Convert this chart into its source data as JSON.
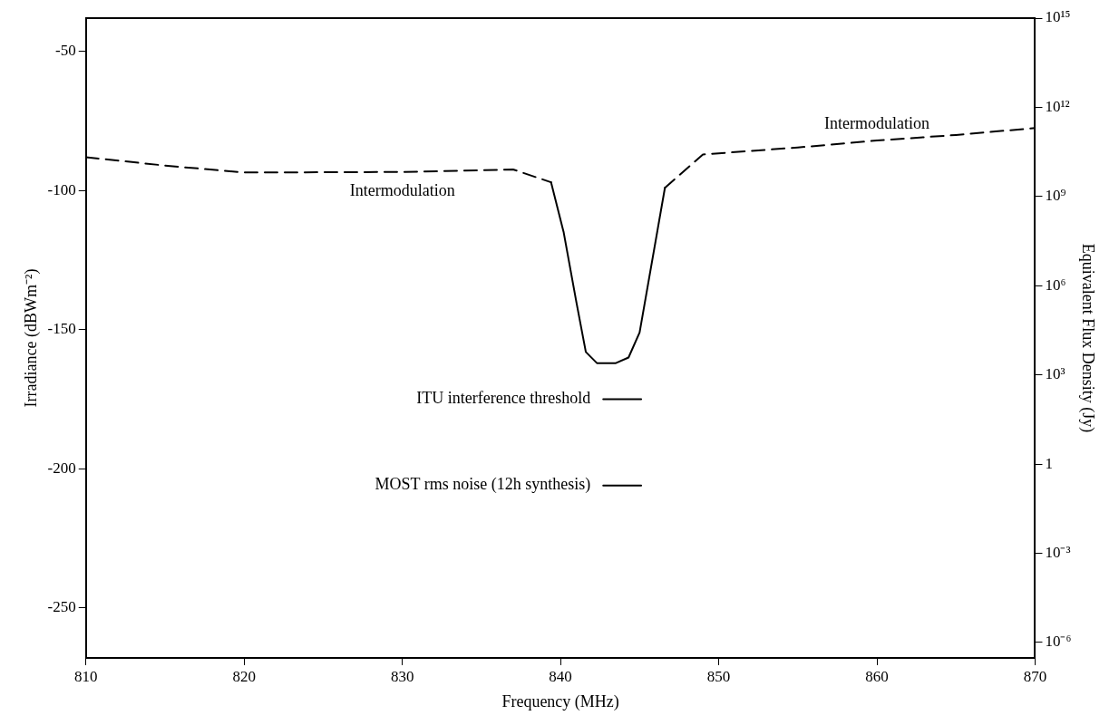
{
  "chart_data": {
    "type": "line",
    "xlabel": "Frequency (MHz)",
    "ylabel": "Irradiance (dBWm⁻²)",
    "y2label": "Equivalent Flux Density (Jy)",
    "xlim": [
      810,
      870
    ],
    "xticks": [
      810,
      820,
      830,
      840,
      850,
      860,
      870
    ],
    "ylim": [
      -268,
      -38
    ],
    "yticks": [
      -250,
      -200,
      -150,
      -100,
      -50
    ],
    "y2lim": [
      3e-07,
      1000000000000000.0
    ],
    "log": "y2",
    "y2ticks": [
      {
        "value": 1e-06,
        "label": "10⁻⁶"
      },
      {
        "value": 0.001,
        "label": "10⁻³"
      },
      {
        "value": 1,
        "label": "1"
      },
      {
        "value": 1000.0,
        "label": "10³"
      },
      {
        "value": 1000000.0,
        "label": "10⁶"
      },
      {
        "value": 1000000000.0,
        "label": "10⁹"
      },
      {
        "value": 1000000000000.0,
        "label": "10¹²"
      },
      {
        "value": 1000000000000000.0,
        "label": "10¹⁵"
      }
    ],
    "grid": false,
    "legend": false,
    "marker": "none",
    "series": [
      {
        "name": "Intermodulation",
        "color": "#000000",
        "line_style": "dashed",
        "x": [
          810,
          815,
          820,
          830,
          837,
          839.4
        ],
        "values": [
          -88,
          -91,
          -93.5,
          -93.3,
          -92.4,
          -97
        ]
      },
      {
        "color": "#000000",
        "line_style": "solid",
        "x": [
          839.4,
          840.2,
          841,
          841.6,
          842.3,
          843.5,
          844.3,
          845,
          846.6
        ],
        "values": [
          -97,
          -115,
          -140,
          -158,
          -162,
          -162,
          -160,
          -151,
          -99
        ]
      },
      {
        "name": "Intermodulation",
        "color": "#000000",
        "line_style": "dashed",
        "x": [
          846.6,
          849,
          855,
          860,
          865,
          870
        ],
        "values": [
          -99,
          -87,
          -84.5,
          -82,
          -80,
          -77.5
        ]
      },
      {
        "name": "ITU interference threshold",
        "color": "#000000",
        "line_style": "solid",
        "x": [
          842.7,
          845.1
        ],
        "values": [
          -175,
          -175
        ]
      },
      {
        "name": "MOST rms noise (12h synthesis)",
        "color": "#000000",
        "line_style": "solid",
        "x": [
          842.7,
          845.1
        ],
        "values": [
          -206,
          -206
        ]
      }
    ]
  }
}
